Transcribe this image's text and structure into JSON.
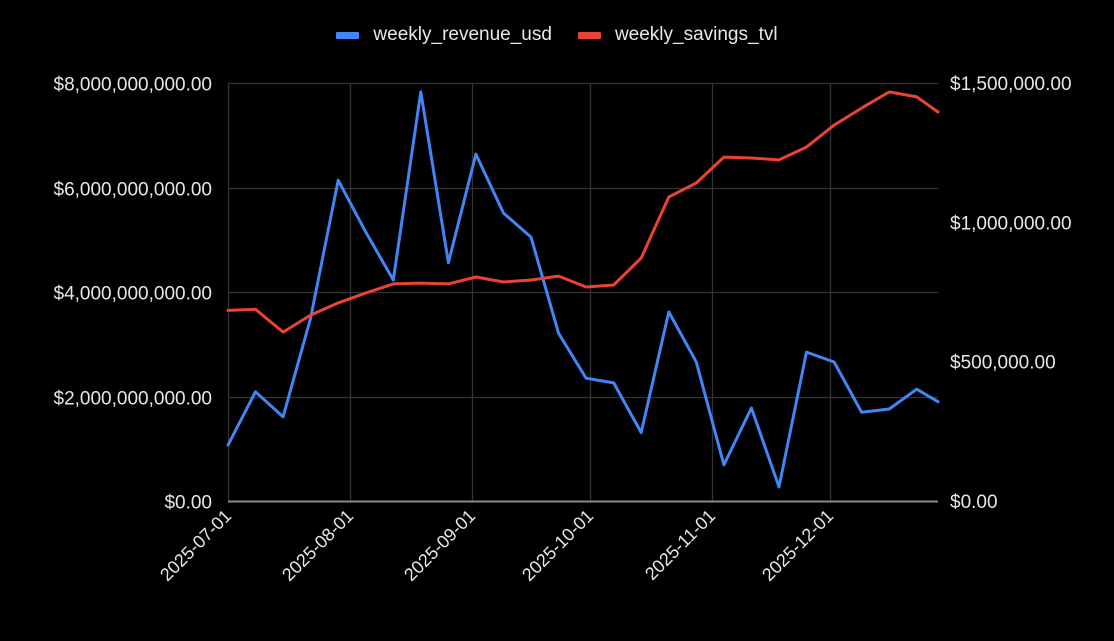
{
  "chart_data": {
    "type": "line",
    "title": "",
    "xlabel": "",
    "ylabel": "",
    "y2label": "",
    "legend_position": "top",
    "grid": true,
    "background": "#000000",
    "x": [
      "2025-07-01",
      "2025-07-08",
      "2025-07-15",
      "2025-07-22",
      "2025-07-29",
      "2025-08-05",
      "2025-08-12",
      "2025-08-19",
      "2025-08-26",
      "2025-09-02",
      "2025-09-09",
      "2025-09-16",
      "2025-09-23",
      "2025-09-30",
      "2025-10-07",
      "2025-10-14",
      "2025-10-21",
      "2025-10-28",
      "2025-11-04",
      "2025-11-11",
      "2025-11-18",
      "2025-11-25",
      "2025-12-02",
      "2025-12-09",
      "2025-12-16",
      "2025-12-23",
      "2025-12-30"
    ],
    "x_tick_labels": [
      "2025-07-01",
      "2025-08-01",
      "2025-09-01",
      "2025-10-01",
      "2025-11-01",
      "2025-12-01"
    ],
    "y_left": {
      "ylim": [
        0,
        8000000000
      ],
      "ticks": [
        0,
        2000000000,
        4000000000,
        6000000000,
        8000000000
      ],
      "tick_labels": [
        "$0.00",
        "$2,000,000,000.00",
        "$4,000,000,000.00",
        "$6,000,000,000.00",
        "$8,000,000,000.00"
      ]
    },
    "y_right": {
      "ylim": [
        0,
        1500000
      ],
      "ticks": [
        0,
        500000,
        1000000,
        1500000
      ],
      "tick_labels": [
        "$0.00",
        "$500,000.00",
        "$1,000,000.00",
        "$1,500,000.00"
      ]
    },
    "series": [
      {
        "name": "weekly_revenue_usd",
        "axis": "left",
        "color": "#4285F4",
        "values": [
          1070000000,
          2090000000,
          1610000000,
          3500000000,
          6140000000,
          5150000000,
          4230000000,
          7830000000,
          4560000000,
          6640000000,
          5510000000,
          5050000000,
          3210000000,
          2350000000,
          2260000000,
          1310000000,
          3620000000,
          2660000000,
          690000000,
          1780000000,
          270000000,
          2850000000,
          2660000000,
          1700000000,
          1760000000,
          2140000000,
          1900000000
        ]
      },
      {
        "name": "weekly_savings_tvl",
        "axis": "right",
        "color": "#EA4335",
        "values": [
          684000,
          688000,
          606000,
          667000,
          711000,
          746000,
          779000,
          782000,
          779000,
          804000,
          786000,
          793000,
          807000,
          768000,
          775000,
          872000,
          1091000,
          1141000,
          1234000,
          1231000,
          1224000,
          1270000,
          1349000,
          1410000,
          1468000,
          1450000,
          1396000
        ]
      }
    ]
  },
  "legend": {
    "items": [
      {
        "label": "weekly_revenue_usd",
        "color": "#4285F4"
      },
      {
        "label": "weekly_savings_tvl",
        "color": "#EA4335"
      }
    ]
  },
  "colors": {
    "background": "#000000",
    "gridline": "#333333",
    "baseline": "#8a8a8a",
    "text": "#e6e6e6"
  }
}
